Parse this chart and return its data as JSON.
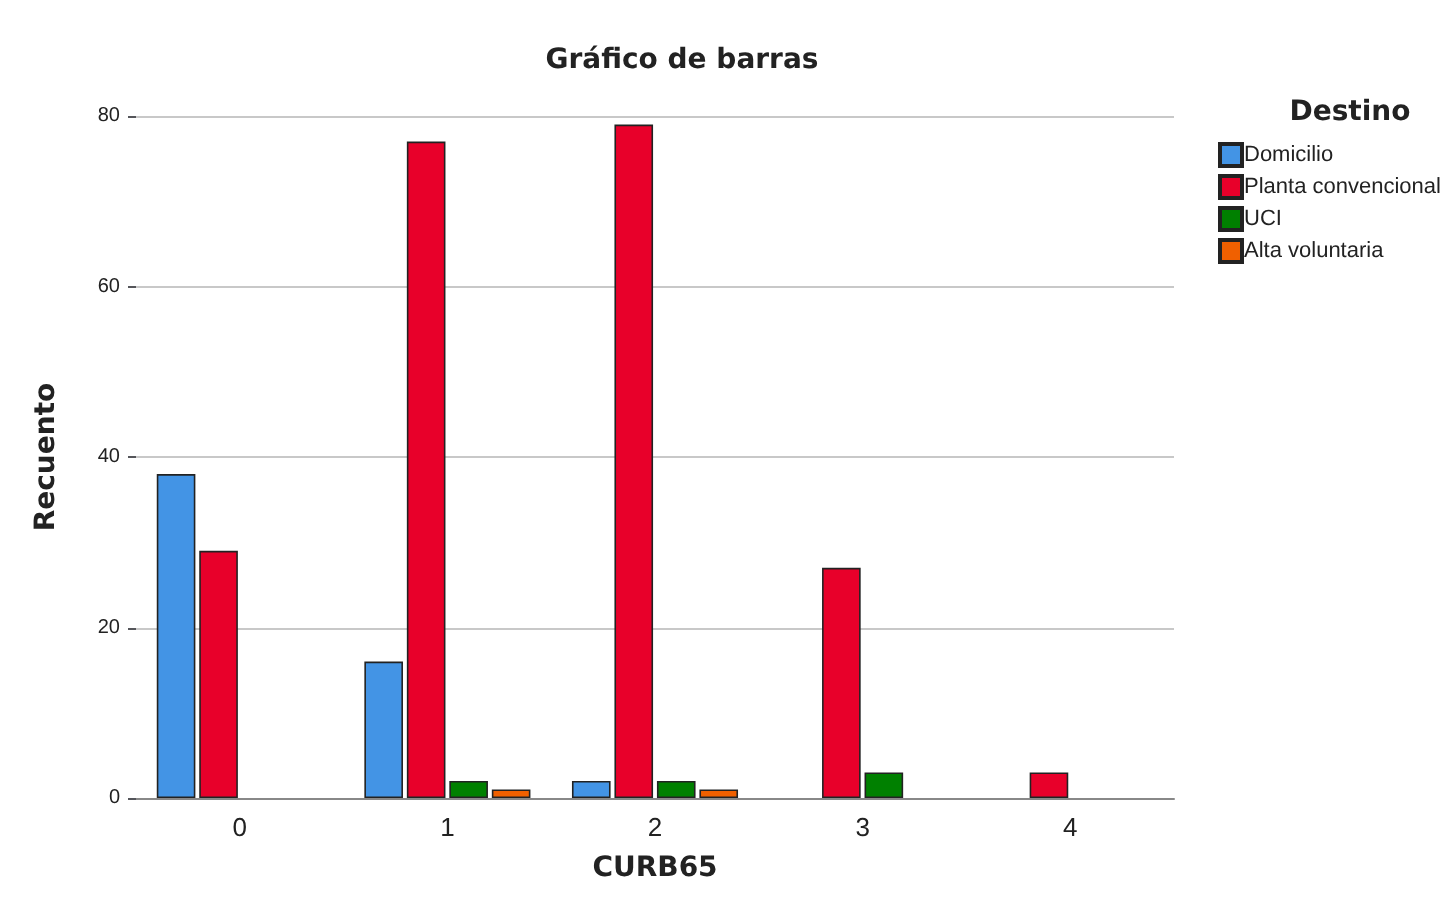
{
  "chart_data": {
    "type": "bar",
    "title": "Gráfico de barras",
    "xlabel": "CURB65",
    "ylabel": "Recuento",
    "legend_title": "Destino",
    "categories": [
      "0",
      "1",
      "2",
      "3",
      "4"
    ],
    "series": [
      {
        "name": "Domicilio",
        "color": "#4394e5",
        "values": [
          38,
          16,
          2,
          null,
          null
        ]
      },
      {
        "name": "Planta convencional",
        "color": "#e8002a",
        "values": [
          29,
          77,
          79,
          27,
          3
        ]
      },
      {
        "name": "UCI",
        "color": "#008000",
        "values": [
          null,
          2,
          2,
          3,
          null
        ]
      },
      {
        "name": "Alta voluntaria",
        "color": "#f06000",
        "values": [
          null,
          1,
          1,
          null,
          null
        ]
      }
    ],
    "ylim": [
      0,
      80
    ],
    "yticks": [
      0,
      20,
      40,
      60,
      80
    ],
    "grid": "y",
    "legend": "top right"
  }
}
